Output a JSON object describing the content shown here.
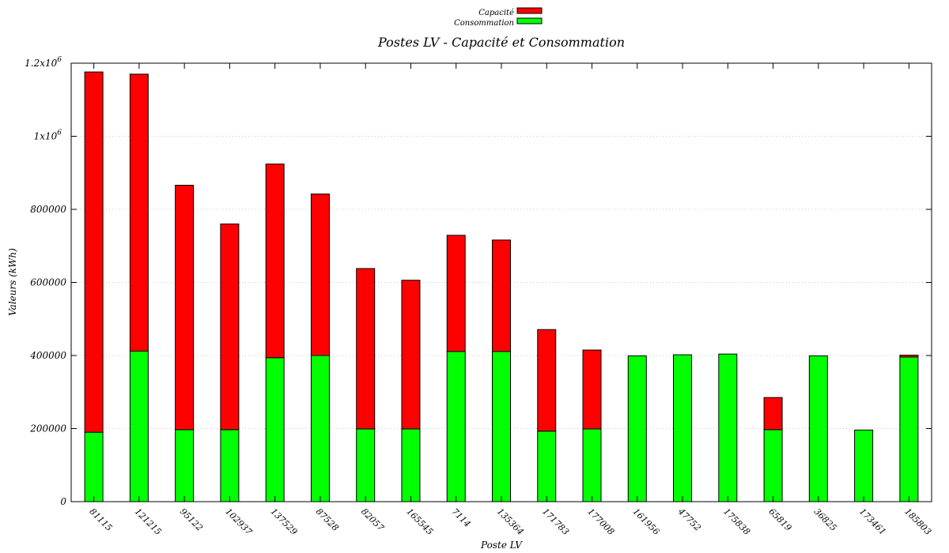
{
  "chart_data": {
    "type": "bar",
    "stacked": true,
    "title": "Postes LV - Capacité et Consommation",
    "xlabel": "Poste LV",
    "ylabel": "Valeurs (kWh)",
    "ylim": [
      0,
      1200000
    ],
    "yticks": [
      {
        "value": 0,
        "label": "0"
      },
      {
        "value": 200000,
        "label": "200000"
      },
      {
        "value": 400000,
        "label": "400000"
      },
      {
        "value": 600000,
        "label": "600000"
      },
      {
        "value": 800000,
        "label": "800000"
      },
      {
        "value": 1000000,
        "label": "1x10",
        "exp": "6"
      },
      {
        "value": 1200000,
        "label": "1.2x10",
        "exp": "6"
      }
    ],
    "grid": true,
    "legend_position": "top-center",
    "categories": [
      "81115",
      "121215",
      "95122",
      "102937",
      "137529",
      "87528",
      "82057",
      "165545",
      "7114",
      "135364",
      "171783",
      "177008",
      "161956",
      "47752",
      "175838",
      "65819",
      "36825",
      "173461",
      "185803"
    ],
    "series": [
      {
        "name": "Consommation",
        "color": "#00ff00",
        "values": [
          190000,
          412000,
          197000,
          197000,
          394000,
          400000,
          199000,
          199000,
          411000,
          411000,
          193000,
          199000,
          399000,
          402000,
          404000,
          197000,
          399000,
          196000,
          396000
        ]
      },
      {
        "name": "Capacité",
        "color": "#ff0000",
        "values": [
          986000,
          758000,
          669000,
          563000,
          530000,
          442000,
          439000,
          407000,
          318000,
          305000,
          278000,
          216000,
          0,
          0,
          0,
          88000,
          0,
          0,
          5000
        ]
      }
    ],
    "legend": [
      {
        "name": "Capacité",
        "color": "#ff0000"
      },
      {
        "name": "Consommation",
        "color": "#00ff00"
      }
    ]
  }
}
